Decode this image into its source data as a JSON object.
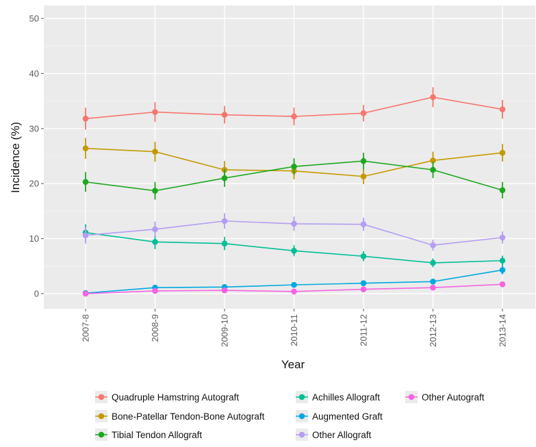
{
  "chart_data": {
    "type": "line",
    "title": "",
    "xlabel": "Year",
    "ylabel": "Incidence (%)",
    "categories": [
      "2007-8",
      "2008-9",
      "2009-10",
      "2010-11",
      "2011-12",
      "2012-13",
      "2013-14"
    ],
    "ylim": [
      0,
      52
    ],
    "yticks": [
      0,
      10,
      20,
      30,
      40,
      50
    ],
    "grid": true,
    "legend_position": "bottom",
    "background": "#EBEBEB",
    "series": [
      {
        "name": "Quadruple Hamstring Autograft",
        "color": "#F8766D",
        "values": [
          31.8,
          33.0,
          32.5,
          32.2,
          32.8,
          35.7,
          33.5
        ],
        "error": [
          2.0,
          1.8,
          1.6,
          1.6,
          1.5,
          1.8,
          1.7
        ]
      },
      {
        "name": "Bone-Patellar Tendon-Bone Autograft",
        "color": "#C49A00",
        "values": [
          26.4,
          25.8,
          22.5,
          22.3,
          21.3,
          24.2,
          25.6
        ],
        "error": [
          1.9,
          1.8,
          1.6,
          1.5,
          1.4,
          1.6,
          1.6
        ]
      },
      {
        "name": "Tibial Tendon Allograft",
        "color": "#1DA81D",
        "values": [
          20.3,
          18.7,
          21.0,
          23.1,
          24.1,
          22.5,
          18.8
        ],
        "error": [
          1.8,
          1.6,
          1.6,
          1.5,
          1.5,
          1.5,
          1.5
        ]
      },
      {
        "name": "Achilles Allograft",
        "color": "#00BF96",
        "values": [
          11.1,
          9.4,
          9.1,
          7.8,
          6.8,
          5.6,
          6.0
        ],
        "error": [
          1.5,
          1.3,
          1.2,
          1.0,
          0.9,
          0.8,
          0.9
        ]
      },
      {
        "name": "Augmented Graft",
        "color": "#00A9E0",
        "values": [
          0.1,
          1.1,
          1.2,
          1.6,
          1.9,
          2.2,
          4.3
        ],
        "error": [
          0.2,
          0.4,
          0.4,
          0.4,
          0.4,
          0.5,
          0.8
        ]
      },
      {
        "name": "Other Allograft",
        "color": "#B49DF2",
        "values": [
          10.6,
          11.7,
          13.2,
          12.7,
          12.6,
          8.8,
          10.2
        ],
        "error": [
          1.5,
          1.4,
          1.4,
          1.3,
          1.2,
          1.0,
          1.1
        ]
      },
      {
        "name": "Other Autograft",
        "color": "#F564E3",
        "values": [
          0.0,
          0.5,
          0.6,
          0.4,
          0.8,
          1.1,
          1.7
        ],
        "error": [
          0.2,
          0.3,
          0.3,
          0.2,
          0.3,
          0.3,
          0.5
        ]
      }
    ]
  },
  "legend": {
    "columns": [
      [
        "Quadruple Hamstring Autograft",
        "Bone-Patellar Tendon-Bone Autograft",
        "Tibial Tendon Allograft"
      ],
      [
        "Achilles Allograft",
        "Augmented Graft",
        "Other Allograft"
      ],
      [
        "Other Autograft"
      ]
    ]
  }
}
